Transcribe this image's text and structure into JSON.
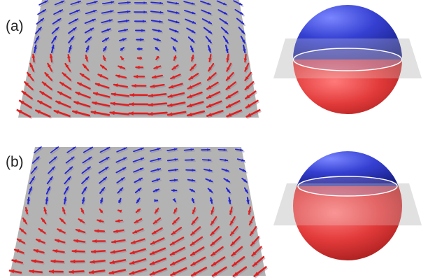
{
  "panels": [
    {
      "label": "(a)",
      "texture": "vortex",
      "sphere": {
        "upper_fraction": 0.5
      }
    },
    {
      "label": "(b)",
      "texture": "vortex-tilted",
      "sphere": {
        "upper_fraction": 0.3
      }
    }
  ],
  "colors": {
    "plane": "#b3b3b3",
    "arrow_up": "#2323d6",
    "arrow_down": "#e01f1f",
    "arrow_shadow": "#8a8aa0",
    "sphere_top": "#3d46d8",
    "sphere_bottom": "#e23a3a",
    "disc": "#d9d9d9"
  }
}
